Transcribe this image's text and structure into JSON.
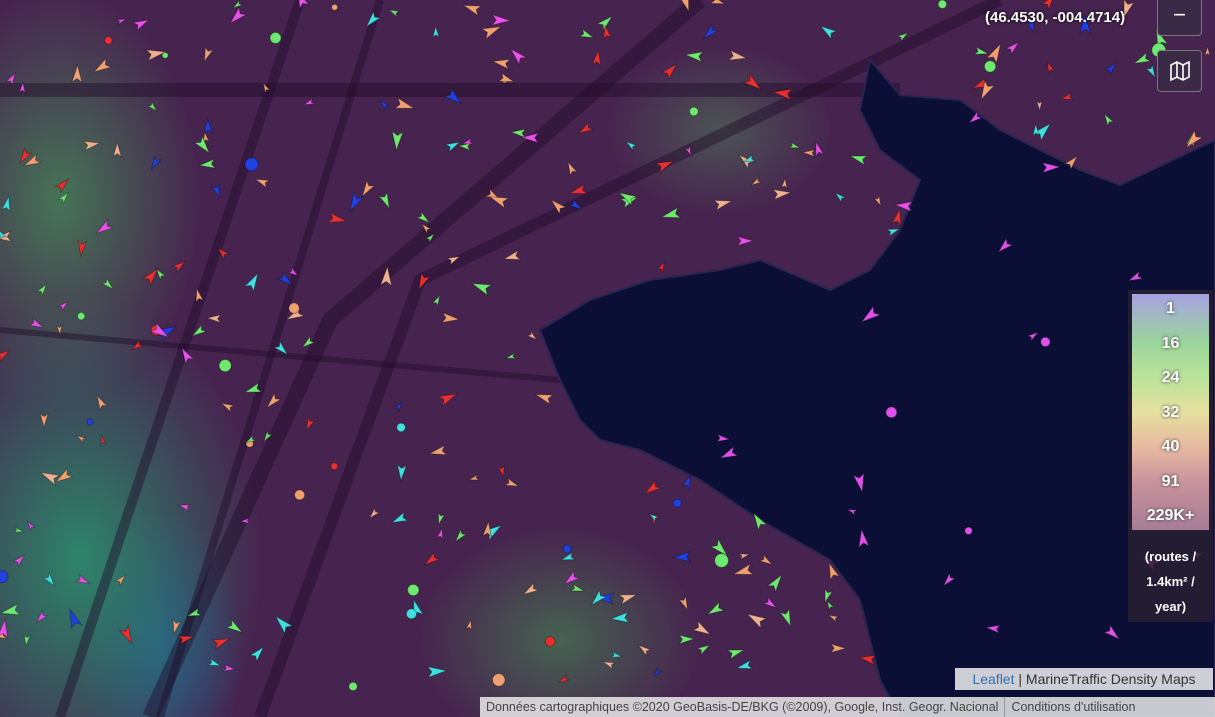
{
  "coordinates": "(46.4530, -004.4714)",
  "zoom_out": "−",
  "legend": {
    "labels": [
      "1",
      "16",
      "24",
      "32",
      "40",
      "91",
      "229K+"
    ],
    "unit": "(routes / 1.4km² / year)"
  },
  "attribution": {
    "leaflet": "Leaflet",
    "source": "| MarineTraffic Density Maps"
  },
  "footer": {
    "copyright": "Données cartographiques ©2020 GeoBasis-DE/BKG (©2009), Google, Inst. Geogr. Nacional",
    "terms": "Conditions d'utilisation"
  }
}
